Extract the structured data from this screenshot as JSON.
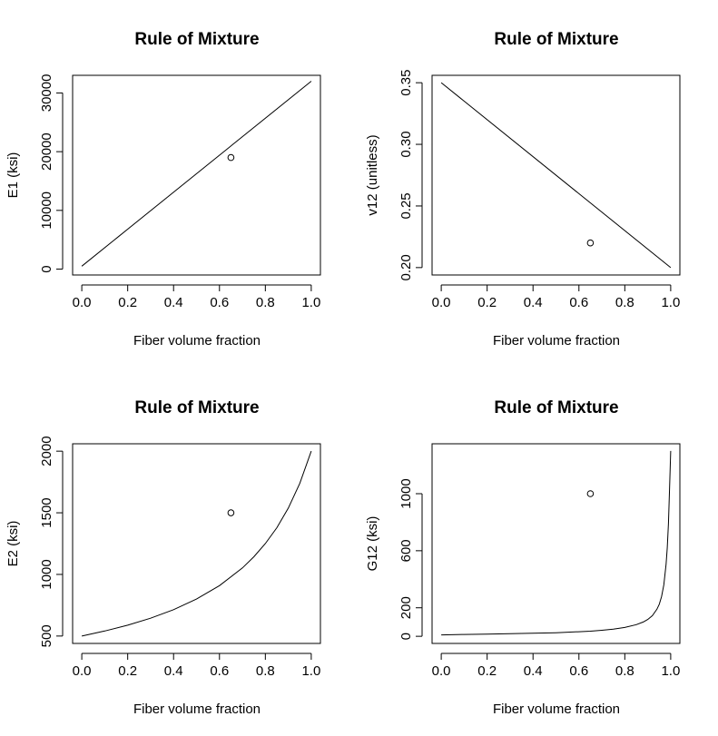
{
  "chart_data": [
    {
      "type": "line",
      "title": "Rule of Mixture",
      "xlabel": "Fiber volume fraction",
      "ylabel": "E1 (ksi)",
      "xlim": [
        -0.04,
        1.04
      ],
      "ylim": [
        -1000,
        33000
      ],
      "xticks": [
        0.0,
        0.2,
        0.4,
        0.6,
        0.8,
        1.0
      ],
      "xtick_labels": [
        "0.0",
        "0.2",
        "0.4",
        "0.6",
        "0.8",
        "1.0"
      ],
      "yticks": [
        0,
        10000,
        20000,
        30000
      ],
      "ytick_labels": [
        "0",
        "10000",
        "20000",
        "30000"
      ],
      "series": [
        {
          "kind": "line",
          "x": [
            0.0,
            1.0
          ],
          "y": [
            500,
            32000
          ]
        },
        {
          "kind": "point",
          "x": [
            0.65
          ],
          "y": [
            19000
          ]
        }
      ]
    },
    {
      "type": "line",
      "title": "Rule of Mixture",
      "xlabel": "Fiber volume fraction",
      "ylabel": "v12 (unitless)",
      "xlim": [
        -0.04,
        1.04
      ],
      "ylim": [
        0.194,
        0.356
      ],
      "xticks": [
        0.0,
        0.2,
        0.4,
        0.6,
        0.8,
        1.0
      ],
      "xtick_labels": [
        "0.0",
        "0.2",
        "0.4",
        "0.6",
        "0.8",
        "1.0"
      ],
      "yticks": [
        0.2,
        0.25,
        0.3,
        0.35
      ],
      "ytick_labels": [
        "0.20",
        "0.25",
        "0.30",
        "0.35"
      ],
      "series": [
        {
          "kind": "line",
          "x": [
            0.0,
            1.0
          ],
          "y": [
            0.35,
            0.2
          ]
        },
        {
          "kind": "point",
          "x": [
            0.65
          ],
          "y": [
            0.22
          ]
        }
      ]
    },
    {
      "type": "line",
      "title": "Rule of Mixture",
      "xlabel": "Fiber volume fraction",
      "ylabel": "E2 (ksi)",
      "xlim": [
        -0.04,
        1.04
      ],
      "ylim": [
        440,
        2060
      ],
      "xticks": [
        0.0,
        0.2,
        0.4,
        0.6,
        0.8,
        1.0
      ],
      "xtick_labels": [
        "0.0",
        "0.2",
        "0.4",
        "0.6",
        "0.8",
        "1.0"
      ],
      "yticks": [
        500,
        1000,
        1500,
        2000
      ],
      "ytick_labels": [
        "500",
        "1000",
        "1500",
        "2000"
      ],
      "series": [
        {
          "kind": "line",
          "x": [
            0.0,
            0.1,
            0.2,
            0.3,
            0.4,
            0.5,
            0.6,
            0.7,
            0.75,
            0.8,
            0.85,
            0.9,
            0.95,
            1.0
          ],
          "y": [
            500,
            541,
            588,
            645,
            714,
            800,
            909,
            1053,
            1143,
            1250,
            1379,
            1538,
            1739,
            2000
          ]
        },
        {
          "kind": "point",
          "x": [
            0.65
          ],
          "y": [
            1500
          ]
        }
      ]
    },
    {
      "type": "line",
      "title": "Rule of Mixture",
      "xlabel": "Fiber volume fraction",
      "ylabel": "G12 (ksi)",
      "xlim": [
        -0.04,
        1.04
      ],
      "ylim": [
        -50,
        1350
      ],
      "xticks": [
        0.0,
        0.2,
        0.4,
        0.6,
        0.8,
        1.0
      ],
      "xtick_labels": [
        "0.0",
        "0.2",
        "0.4",
        "0.6",
        "0.8",
        "1.0"
      ],
      "yticks": [
        0,
        200,
        600,
        1000
      ],
      "ytick_labels": [
        "0",
        "200",
        "600",
        "1000"
      ],
      "series": [
        {
          "kind": "line",
          "x": [
            0.0,
            0.1,
            0.2,
            0.3,
            0.4,
            0.5,
            0.6,
            0.65,
            0.7,
            0.75,
            0.8,
            0.85,
            0.88,
            0.9,
            0.92,
            0.94,
            0.95,
            0.96,
            0.97,
            0.98,
            0.985,
            0.99,
            0.995,
            1.0
          ],
          "y": [
            10,
            13,
            15,
            18,
            21,
            25,
            32,
            36,
            42,
            50,
            62,
            82,
            100,
            118,
            145,
            190,
            225,
            278,
            360,
            505,
            620,
            790,
            1030,
            1300
          ]
        },
        {
          "kind": "point",
          "x": [
            0.65
          ],
          "y": [
            1000
          ]
        }
      ]
    }
  ]
}
